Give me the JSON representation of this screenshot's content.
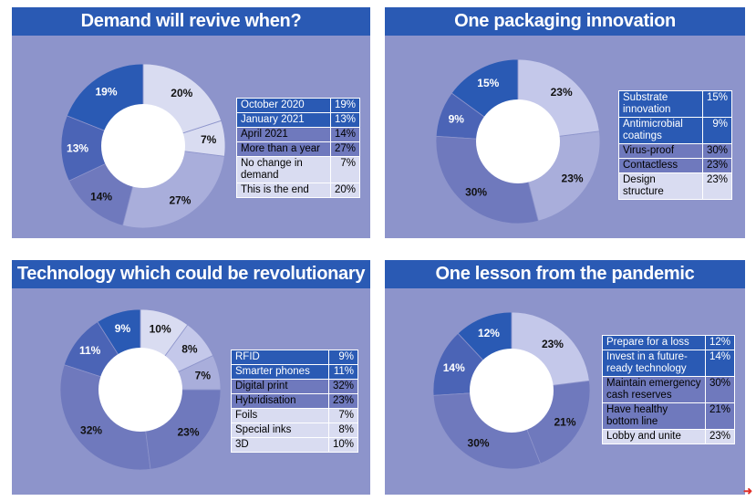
{
  "colors": {
    "title_bg": "#2a5ab4",
    "panel_bg": "#8d94cb",
    "dark": "#2a5ab4",
    "mid_dark": "#4b64b6",
    "mid": "#6f79bd",
    "light": "#a9aedb",
    "lighter": "#c4c8ea",
    "lightest": "#d9dcf1"
  },
  "chart_data": [
    {
      "type": "pie",
      "title": "Demand will revive when?",
      "slices": [
        {
          "label": "October 2020",
          "value": 19,
          "pct": "19%"
        },
        {
          "label": "January 2021",
          "value": 13,
          "pct": "13%"
        },
        {
          "label": "April 2021",
          "value": 14,
          "pct": "14%"
        },
        {
          "label": "More than a year",
          "value": 27,
          "pct": "27%"
        },
        {
          "label": "No change in demand",
          "value": 7,
          "pct": "7%"
        },
        {
          "label": "This is the end",
          "value": 20,
          "pct": "20%"
        }
      ]
    },
    {
      "type": "pie",
      "title": "One packaging innovation",
      "slices": [
        {
          "label": "Substrate innovation",
          "value": 15,
          "pct": "15%"
        },
        {
          "label": "Antimicrobial coatings",
          "value": 9,
          "pct": "9%"
        },
        {
          "label": "Virus-proof",
          "value": 30,
          "pct": "30%"
        },
        {
          "label": "Contactless",
          "value": 23,
          "pct": "23%"
        },
        {
          "label": "Design structure",
          "value": 23,
          "pct": "23%"
        }
      ]
    },
    {
      "type": "pie",
      "title": "Technology which could be revolutionary",
      "slices": [
        {
          "label": "RFID",
          "value": 9,
          "pct": "9%"
        },
        {
          "label": "Smarter phones",
          "value": 11,
          "pct": "11%"
        },
        {
          "label": "Digital print",
          "value": 32,
          "pct": "32%"
        },
        {
          "label": "Hybridisation",
          "value": 23,
          "pct": "23%"
        },
        {
          "label": "Foils",
          "value": 7,
          "pct": "7%"
        },
        {
          "label": "Special inks",
          "value": 8,
          "pct": "8%"
        },
        {
          "label": "3D",
          "value": 10,
          "pct": "10%"
        }
      ]
    },
    {
      "type": "pie",
      "title": "One lesson from the pandemic",
      "slices": [
        {
          "label": "Prepare for a loss",
          "value": 12,
          "pct": "12%"
        },
        {
          "label": "Invest in a future-ready technology",
          "value": 14,
          "pct": "14%"
        },
        {
          "label": "Maintain emergency cash reserves",
          "value": 30,
          "pct": "30%"
        },
        {
          "label": "Have healthy bottom line",
          "value": 21,
          "pct": "21%"
        },
        {
          "label": "Lobby and unite",
          "value": 23,
          "pct": "23%"
        }
      ]
    }
  ]
}
